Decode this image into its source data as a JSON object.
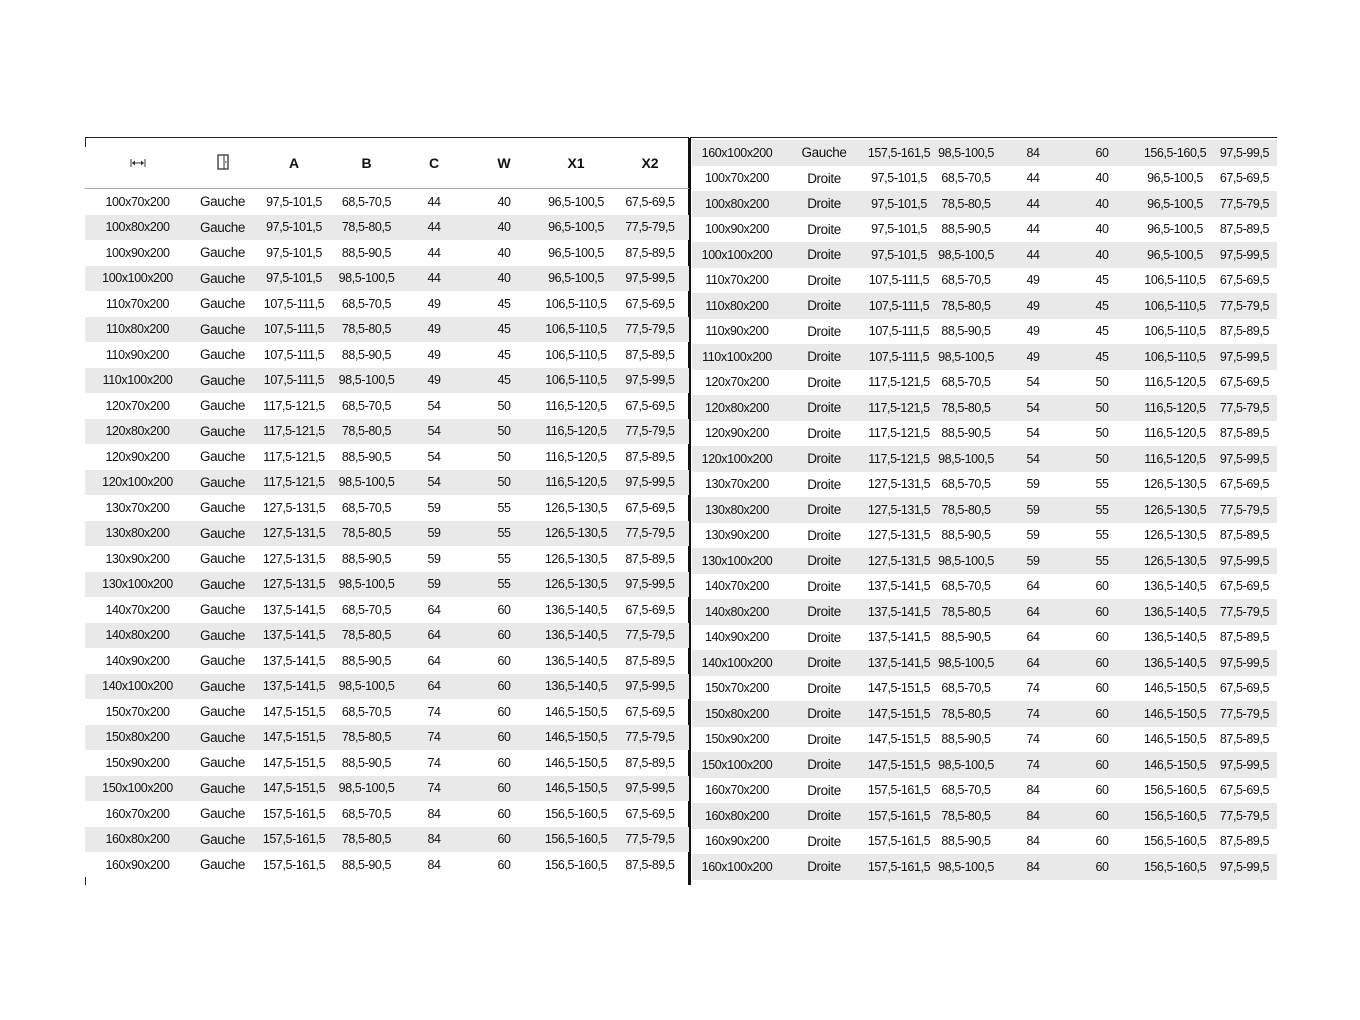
{
  "header": {
    "icons": [
      "width-arrows-icon",
      "door-icon"
    ],
    "columns": [
      "A",
      "B",
      "C",
      "W",
      "X1",
      "X2"
    ]
  },
  "left_rows": [
    [
      "100x70x200",
      "Gauche",
      "97,5-101,5",
      "68,5-70,5",
      "44",
      "40",
      "96,5-100,5",
      "67,5-69,5"
    ],
    [
      "100x80x200",
      "Gauche",
      "97,5-101,5",
      "78,5-80,5",
      "44",
      "40",
      "96,5-100,5",
      "77,5-79,5"
    ],
    [
      "100x90x200",
      "Gauche",
      "97,5-101,5",
      "88,5-90,5",
      "44",
      "40",
      "96,5-100,5",
      "87,5-89,5"
    ],
    [
      "100x100x200",
      "Gauche",
      "97,5-101,5",
      "98,5-100,5",
      "44",
      "40",
      "96,5-100,5",
      "97,5-99,5"
    ],
    [
      "110x70x200",
      "Gauche",
      "107,5-111,5",
      "68,5-70,5",
      "49",
      "45",
      "106,5-110,5",
      "67,5-69,5"
    ],
    [
      "110x80x200",
      "Gauche",
      "107,5-111,5",
      "78,5-80,5",
      "49",
      "45",
      "106,5-110,5",
      "77,5-79,5"
    ],
    [
      "110x90x200",
      "Gauche",
      "107,5-111,5",
      "88,5-90,5",
      "49",
      "45",
      "106,5-110,5",
      "87,5-89,5"
    ],
    [
      "110x100x200",
      "Gauche",
      "107,5-111,5",
      "98,5-100,5",
      "49",
      "45",
      "106,5-110,5",
      "97,5-99,5"
    ],
    [
      "120x70x200",
      "Gauche",
      "117,5-121,5",
      "68,5-70,5",
      "54",
      "50",
      "116,5-120,5",
      "67,5-69,5"
    ],
    [
      "120x80x200",
      "Gauche",
      "117,5-121,5",
      "78,5-80,5",
      "54",
      "50",
      "116,5-120,5",
      "77,5-79,5"
    ],
    [
      "120x90x200",
      "Gauche",
      "117,5-121,5",
      "88,5-90,5",
      "54",
      "50",
      "116,5-120,5",
      "87,5-89,5"
    ],
    [
      "120x100x200",
      "Gauche",
      "117,5-121,5",
      "98,5-100,5",
      "54",
      "50",
      "116,5-120,5",
      "97,5-99,5"
    ],
    [
      "130x70x200",
      "Gauche",
      "127,5-131,5",
      "68,5-70,5",
      "59",
      "55",
      "126,5-130,5",
      "67,5-69,5"
    ],
    [
      "130x80x200",
      "Gauche",
      "127,5-131,5",
      "78,5-80,5",
      "59",
      "55",
      "126,5-130,5",
      "77,5-79,5"
    ],
    [
      "130x90x200",
      "Gauche",
      "127,5-131,5",
      "88,5-90,5",
      "59",
      "55",
      "126,5-130,5",
      "87,5-89,5"
    ],
    [
      "130x100x200",
      "Gauche",
      "127,5-131,5",
      "98,5-100,5",
      "59",
      "55",
      "126,5-130,5",
      "97,5-99,5"
    ],
    [
      "140x70x200",
      "Gauche",
      "137,5-141,5",
      "68,5-70,5",
      "64",
      "60",
      "136,5-140,5",
      "67,5-69,5"
    ],
    [
      "140x80x200",
      "Gauche",
      "137,5-141,5",
      "78,5-80,5",
      "64",
      "60",
      "136,5-140,5",
      "77,5-79,5"
    ],
    [
      "140x90x200",
      "Gauche",
      "137,5-141,5",
      "88,5-90,5",
      "64",
      "60",
      "136,5-140,5",
      "87,5-89,5"
    ],
    [
      "140x100x200",
      "Gauche",
      "137,5-141,5",
      "98,5-100,5",
      "64",
      "60",
      "136,5-140,5",
      "97,5-99,5"
    ],
    [
      "150x70x200",
      "Gauche",
      "147,5-151,5",
      "68,5-70,5",
      "74",
      "60",
      "146,5-150,5",
      "67,5-69,5"
    ],
    [
      "150x80x200",
      "Gauche",
      "147,5-151,5",
      "78,5-80,5",
      "74",
      "60",
      "146,5-150,5",
      "77,5-79,5"
    ],
    [
      "150x90x200",
      "Gauche",
      "147,5-151,5",
      "88,5-90,5",
      "74",
      "60",
      "146,5-150,5",
      "87,5-89,5"
    ],
    [
      "150x100x200",
      "Gauche",
      "147,5-151,5",
      "98,5-100,5",
      "74",
      "60",
      "146,5-150,5",
      "97,5-99,5"
    ],
    [
      "160x70x200",
      "Gauche",
      "157,5-161,5",
      "68,5-70,5",
      "84",
      "60",
      "156,5-160,5",
      "67,5-69,5"
    ],
    [
      "160x80x200",
      "Gauche",
      "157,5-161,5",
      "78,5-80,5",
      "84",
      "60",
      "156,5-160,5",
      "77,5-79,5"
    ],
    [
      "160x90x200",
      "Gauche",
      "157,5-161,5",
      "88,5-90,5",
      "84",
      "60",
      "156,5-160,5",
      "87,5-89,5"
    ]
  ],
  "right_rows": [
    [
      "160x100x200",
      "Gauche",
      "157,5-161,5",
      "98,5-100,5",
      "84",
      "60",
      "156,5-160,5",
      "97,5-99,5"
    ],
    [
      "100x70x200",
      "Droite",
      "97,5-101,5",
      "68,5-70,5",
      "44",
      "40",
      "96,5-100,5",
      "67,5-69,5"
    ],
    [
      "100x80x200",
      "Droite",
      "97,5-101,5",
      "78,5-80,5",
      "44",
      "40",
      "96,5-100,5",
      "77,5-79,5"
    ],
    [
      "100x90x200",
      "Droite",
      "97,5-101,5",
      "88,5-90,5",
      "44",
      "40",
      "96,5-100,5",
      "87,5-89,5"
    ],
    [
      "100x100x200",
      "Droite",
      "97,5-101,5",
      "98,5-100,5",
      "44",
      "40",
      "96,5-100,5",
      "97,5-99,5"
    ],
    [
      "110x70x200",
      "Droite",
      "107,5-111,5",
      "68,5-70,5",
      "49",
      "45",
      "106,5-110,5",
      "67,5-69,5"
    ],
    [
      "110x80x200",
      "Droite",
      "107,5-111,5",
      "78,5-80,5",
      "49",
      "45",
      "106,5-110,5",
      "77,5-79,5"
    ],
    [
      "110x90x200",
      "Droite",
      "107,5-111,5",
      "88,5-90,5",
      "49",
      "45",
      "106,5-110,5",
      "87,5-89,5"
    ],
    [
      "110x100x200",
      "Droite",
      "107,5-111,5",
      "98,5-100,5",
      "49",
      "45",
      "106,5-110,5",
      "97,5-99,5"
    ],
    [
      "120x70x200",
      "Droite",
      "117,5-121,5",
      "68,5-70,5",
      "54",
      "50",
      "116,5-120,5",
      "67,5-69,5"
    ],
    [
      "120x80x200",
      "Droite",
      "117,5-121,5",
      "78,5-80,5",
      "54",
      "50",
      "116,5-120,5",
      "77,5-79,5"
    ],
    [
      "120x90x200",
      "Droite",
      "117,5-121,5",
      "88,5-90,5",
      "54",
      "50",
      "116,5-120,5",
      "87,5-89,5"
    ],
    [
      "120x100x200",
      "Droite",
      "117,5-121,5",
      "98,5-100,5",
      "54",
      "50",
      "116,5-120,5",
      "97,5-99,5"
    ],
    [
      "130x70x200",
      "Droite",
      "127,5-131,5",
      "68,5-70,5",
      "59",
      "55",
      "126,5-130,5",
      "67,5-69,5"
    ],
    [
      "130x80x200",
      "Droite",
      "127,5-131,5",
      "78,5-80,5",
      "59",
      "55",
      "126,5-130,5",
      "77,5-79,5"
    ],
    [
      "130x90x200",
      "Droite",
      "127,5-131,5",
      "88,5-90,5",
      "59",
      "55",
      "126,5-130,5",
      "87,5-89,5"
    ],
    [
      "130x100x200",
      "Droite",
      "127,5-131,5",
      "98,5-100,5",
      "59",
      "55",
      "126,5-130,5",
      "97,5-99,5"
    ],
    [
      "140x70x200",
      "Droite",
      "137,5-141,5",
      "68,5-70,5",
      "64",
      "60",
      "136,5-140,5",
      "67,5-69,5"
    ],
    [
      "140x80x200",
      "Droite",
      "137,5-141,5",
      "78,5-80,5",
      "64",
      "60",
      "136,5-140,5",
      "77,5-79,5"
    ],
    [
      "140x90x200",
      "Droite",
      "137,5-141,5",
      "88,5-90,5",
      "64",
      "60",
      "136,5-140,5",
      "87,5-89,5"
    ],
    [
      "140x100x200",
      "Droite",
      "137,5-141,5",
      "98,5-100,5",
      "64",
      "60",
      "136,5-140,5",
      "97,5-99,5"
    ],
    [
      "150x70x200",
      "Droite",
      "147,5-151,5",
      "68,5-70,5",
      "74",
      "60",
      "146,5-150,5",
      "67,5-69,5"
    ],
    [
      "150x80x200",
      "Droite",
      "147,5-151,5",
      "78,5-80,5",
      "74",
      "60",
      "146,5-150,5",
      "77,5-79,5"
    ],
    [
      "150x90x200",
      "Droite",
      "147,5-151,5",
      "88,5-90,5",
      "74",
      "60",
      "146,5-150,5",
      "87,5-89,5"
    ],
    [
      "150x100x200",
      "Droite",
      "147,5-151,5",
      "98,5-100,5",
      "74",
      "60",
      "146,5-150,5",
      "97,5-99,5"
    ],
    [
      "160x70x200",
      "Droite",
      "157,5-161,5",
      "68,5-70,5",
      "84",
      "60",
      "156,5-160,5",
      "67,5-69,5"
    ],
    [
      "160x80x200",
      "Droite",
      "157,5-161,5",
      "78,5-80,5",
      "84",
      "60",
      "156,5-160,5",
      "77,5-79,5"
    ],
    [
      "160x90x200",
      "Droite",
      "157,5-161,5",
      "88,5-90,5",
      "84",
      "60",
      "156,5-160,5",
      "87,5-89,5"
    ],
    [
      "160x100x200",
      "Droite",
      "157,5-161,5",
      "98,5-100,5",
      "84",
      "60",
      "156,5-160,5",
      "97,5-99,5"
    ]
  ],
  "colors": {
    "stripe": "#e9e9e9",
    "rule": "#111111"
  }
}
